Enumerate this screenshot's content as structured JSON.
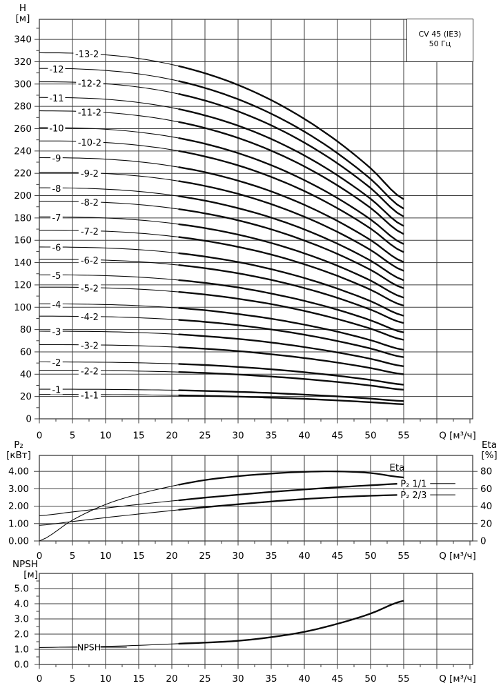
{
  "title_box": {
    "line1": "CV 45 (IE3)",
    "line2": "50 Гц"
  },
  "axis_headers": {
    "h": "H",
    "h_unit": "[м]",
    "p2": "P₂",
    "p2_unit": "[кВт]",
    "eta": "Eta",
    "eta_unit": "[%]",
    "npsh": "NPSH",
    "npsh_unit": "[м]"
  },
  "x_axis_label": "Q [м³/ч]",
  "chart_data": [
    {
      "type": "line",
      "name": "head-curves",
      "title": "CV 45 (IE3) 50 Гц",
      "xlabel": "Q [м³/ч]",
      "ylabel": "H [м]",
      "xlim": [
        0,
        65.4
      ],
      "ylim": [
        0,
        358
      ],
      "x_ticks": [
        0,
        5,
        10,
        15,
        20,
        25,
        30,
        35,
        40,
        45,
        50,
        55
      ],
      "y_ticks": [
        0,
        20,
        40,
        60,
        80,
        100,
        120,
        140,
        160,
        180,
        200,
        220,
        240,
        260,
        280,
        300,
        320,
        340
      ],
      "grid": true,
      "x": [
        0,
        5,
        10,
        15,
        20,
        25,
        30,
        35,
        40,
        45,
        50,
        55
      ],
      "series": [
        {
          "name": "-13-2",
          "label_q": 7.2,
          "values": [
            328,
            327.7,
            326.2,
            322.9,
            317.5,
            309.7,
            299.2,
            285.6,
            268.8,
            248.6,
            224.6,
            196.8
          ]
        },
        {
          "name": "-12",
          "label_q": 2.6,
          "values": [
            314,
            313.7,
            312.2,
            309.1,
            304.0,
            296.5,
            286.4,
            273.4,
            257.4,
            238.0,
            215.0,
            188.4
          ]
        },
        {
          "name": "-12-2",
          "label_q": 7.6,
          "values": [
            302,
            301.7,
            300.3,
            297.3,
            292.4,
            285.2,
            275.5,
            263.0,
            247.5,
            228.9,
            206.8,
            181.2
          ]
        },
        {
          "name": "-11",
          "label_q": 2.6,
          "values": [
            288,
            287.7,
            286.4,
            283.5,
            278.8,
            271.9,
            262.7,
            250.8,
            236.0,
            218.2,
            197.2,
            172.8
          ]
        },
        {
          "name": "-11-2",
          "label_q": 7.6,
          "values": [
            276,
            275.7,
            274.5,
            271.7,
            267.2,
            260.6,
            251.7,
            240.3,
            226.2,
            209.2,
            189.0,
            165.6
          ]
        },
        {
          "name": "-10",
          "label_q": 2.6,
          "values": [
            261,
            260.7,
            259.5,
            256.9,
            252.7,
            246.5,
            238.1,
            227.3,
            213.9,
            197.8,
            178.7,
            156.6
          ]
        },
        {
          "name": "-10-2",
          "label_q": 7.6,
          "values": [
            249,
            248.8,
            247.6,
            245.1,
            241.1,
            235.1,
            227.1,
            216.8,
            204.1,
            188.7,
            170.5,
            149.4
          ]
        },
        {
          "name": "-9",
          "label_q": 2.6,
          "values": [
            234,
            233.8,
            232.7,
            230.4,
            226.5,
            221.0,
            213.4,
            203.8,
            191.8,
            177.3,
            160.2,
            140.4
          ]
        },
        {
          "name": "-9-2",
          "label_q": 7.6,
          "values": [
            221,
            220.8,
            219.8,
            217.6,
            214.0,
            208.7,
            201.6,
            192.4,
            181.1,
            167.5,
            151.3,
            132.6
          ]
        },
        {
          "name": "-8",
          "label_q": 2.6,
          "values": [
            207,
            206.8,
            205.8,
            203.8,
            200.4,
            195.5,
            188.8,
            180.3,
            169.7,
            156.9,
            141.8,
            124.2
          ]
        },
        {
          "name": "-8-2",
          "label_q": 7.6,
          "values": [
            195,
            194.8,
            193.9,
            192.0,
            188.8,
            184.1,
            177.9,
            169.8,
            159.8,
            147.8,
            133.5,
            117.0
          ]
        },
        {
          "name": "-7",
          "label_q": 2.6,
          "values": [
            181,
            180.8,
            180.0,
            178.2,
            175.2,
            170.9,
            165.1,
            157.6,
            148.3,
            137.2,
            123.9,
            108.6
          ]
        },
        {
          "name": "-7-2",
          "label_q": 7.6,
          "values": [
            169,
            168.8,
            168.1,
            166.4,
            163.6,
            159.6,
            154.1,
            147.2,
            138.5,
            128.1,
            115.7,
            101.4
          ]
        },
        {
          "name": "-6",
          "label_q": 2.6,
          "values": [
            154,
            153.8,
            153.1,
            151.6,
            149.1,
            145.4,
            140.5,
            134.1,
            126.2,
            116.7,
            105.5,
            92.4
          ]
        },
        {
          "name": "-6-2",
          "label_q": 7.6,
          "values": [
            143,
            142.9,
            142.2,
            140.8,
            138.4,
            135.0,
            130.4,
            124.5,
            117.2,
            108.4,
            97.9,
            85.8
          ]
        },
        {
          "name": "-5",
          "label_q": 2.6,
          "values": [
            129,
            128.9,
            128.3,
            127.0,
            124.9,
            121.8,
            117.7,
            112.3,
            105.7,
            97.8,
            88.3,
            77.4
          ]
        },
        {
          "name": "-5-2",
          "label_q": 7.6,
          "values": [
            118,
            117.9,
            117.3,
            116.2,
            114.2,
            111.4,
            107.6,
            102.8,
            96.7,
            89.4,
            80.8,
            70.8
          ]
        },
        {
          "name": "-4",
          "label_q": 2.6,
          "values": [
            103,
            102.9,
            102.4,
            101.4,
            99.7,
            97.3,
            93.9,
            89.7,
            84.4,
            78.1,
            70.5,
            61.8
          ]
        },
        {
          "name": "-4-2",
          "label_q": 7.6,
          "values": [
            92,
            91.9,
            91.5,
            90.6,
            89.1,
            86.9,
            83.9,
            80.1,
            75.4,
            69.7,
            63.0,
            55.2
          ]
        },
        {
          "name": "-3",
          "label_q": 2.6,
          "values": [
            78.5,
            78.4,
            78.1,
            77.3,
            76.0,
            74.1,
            71.6,
            68.4,
            64.3,
            59.5,
            53.8,
            47.1
          ]
        },
        {
          "name": "-3-2",
          "label_q": 7.6,
          "values": [
            66.5,
            66.4,
            66.1,
            65.5,
            64.4,
            62.8,
            60.7,
            57.9,
            54.5,
            50.4,
            45.5,
            39.9
          ]
        },
        {
          "name": "-2",
          "label_q": 2.6,
          "values": [
            51,
            50.9,
            50.7,
            50.2,
            49.4,
            48.2,
            46.5,
            44.4,
            41.8,
            38.6,
            34.9,
            30.6
          ]
        },
        {
          "name": "-2-2",
          "label_q": 7.6,
          "values": [
            43.5,
            43.5,
            43.3,
            42.8,
            42.1,
            41.1,
            39.7,
            37.9,
            35.7,
            33.0,
            29.8,
            26.1
          ]
        },
        {
          "name": "-1",
          "label_q": 2.6,
          "values": [
            26.5,
            26.5,
            26.4,
            26.1,
            25.7,
            25.0,
            24.2,
            23.1,
            21.7,
            20.1,
            18.1,
            15.9
          ]
        },
        {
          "name": "-1-1",
          "label_q": 7.6,
          "values": [
            21.8,
            21.8,
            21.7,
            21.5,
            21.1,
            20.6,
            19.9,
            19.0,
            17.9,
            16.5,
            14.9,
            13.1
          ]
        }
      ]
    },
    {
      "type": "line",
      "name": "power-efficiency",
      "xlabel": "Q [м³/ч]",
      "ylabel_left": "P₂ [кВт]",
      "ylabel_right": "Eta [%]",
      "xlim": [
        0,
        65.4
      ],
      "ylim_left": [
        0,
        4.92
      ],
      "ylim_right": [
        0,
        98.4
      ],
      "x_ticks": [
        0,
        5,
        10,
        15,
        20,
        25,
        30,
        35,
        40,
        45,
        50,
        55
      ],
      "y_ticks_left": [
        "0.00",
        "1.00",
        "2.00",
        "3.00",
        "4.00"
      ],
      "y_ticks_right": [
        "0",
        "20",
        "40",
        "60",
        "80"
      ],
      "grid": true,
      "x": [
        0,
        5,
        10,
        15,
        20,
        25,
        30,
        35,
        40,
        45,
        50,
        55
      ],
      "series": [
        {
          "name": "Eta",
          "axis": "right",
          "values": [
            0,
            24,
            42,
            54,
            63,
            70,
            74.5,
            77.5,
            79.5,
            80,
            78.2,
            73
          ]
        },
        {
          "name": "P₂ 1/1",
          "axis": "left",
          "values": [
            1.45,
            1.67,
            1.89,
            2.1,
            2.3,
            2.49,
            2.66,
            2.82,
            2.96,
            3.09,
            3.2,
            3.3
          ]
        },
        {
          "name": "P₂ 2/3",
          "axis": "left",
          "values": [
            0.9,
            1.12,
            1.34,
            1.55,
            1.75,
            1.94,
            2.11,
            2.27,
            2.41,
            2.52,
            2.6,
            2.65
          ]
        }
      ],
      "annotations": [
        {
          "text": "Eta",
          "q": 54.0,
          "kw": 4.22,
          "leader": false
        },
        {
          "text": "P₂ 1/1",
          "q": 56.5,
          "kw": 3.3,
          "leader": true,
          "leader_to_q": 62.8
        },
        {
          "text": "P₂ 2/3",
          "q": 56.5,
          "kw": 2.65,
          "leader": true,
          "leader_to_q": 62.8
        }
      ]
    },
    {
      "type": "line",
      "name": "npsh",
      "xlabel": "Q [м³/ч]",
      "ylabel": "NPSH [м]",
      "xlim": [
        0,
        65.4
      ],
      "ylim": [
        0,
        6
      ],
      "x_ticks": [
        0,
        5,
        10,
        15,
        20,
        25,
        30,
        35,
        40,
        45,
        50,
        55
      ],
      "y_ticks": [
        "0.0",
        "1.0",
        "2.0",
        "3.0",
        "4.0",
        "5.0"
      ],
      "grid": true,
      "x": [
        0,
        5,
        10,
        15,
        20,
        25,
        30,
        35,
        40,
        45,
        50,
        55
      ],
      "series": [
        {
          "name": "NPSH",
          "values": [
            1.12,
            1.15,
            1.19,
            1.26,
            1.35,
            1.44,
            1.56,
            1.8,
            2.15,
            2.68,
            3.35,
            4.2
          ]
        }
      ],
      "annotations": [
        {
          "text": "NPSH",
          "q": 7.5,
          "dash_from_q": 3.0,
          "dash_to_q": 13.2
        }
      ]
    }
  ]
}
